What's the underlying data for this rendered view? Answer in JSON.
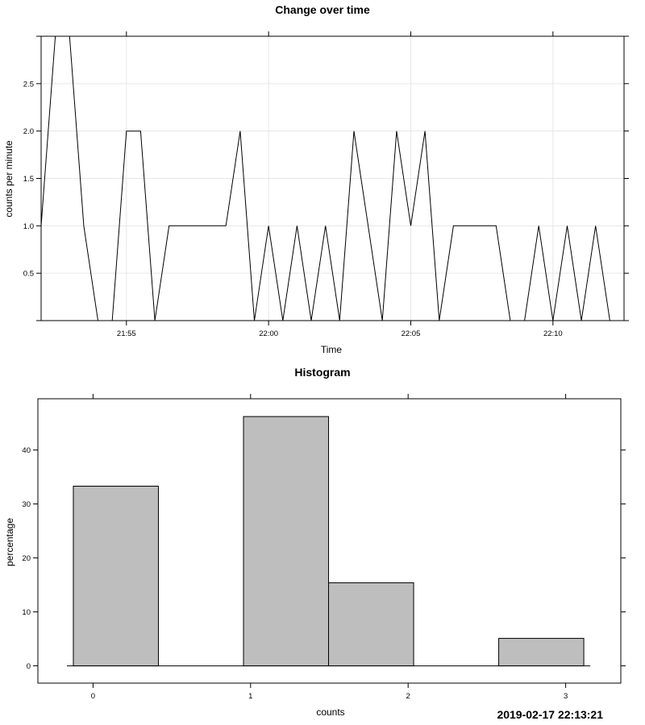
{
  "chart_data": [
    {
      "type": "line",
      "title": "Change over time",
      "xlabel": "Time",
      "ylabel": "counts per minute",
      "x_tick_labels": [
        "21:55",
        "22:00",
        "22:05",
        "22:10"
      ],
      "y_tick_labels": [
        "0.5",
        "1.0",
        "1.5",
        "2.0",
        "2.5"
      ],
      "y_ticks": [
        0.5,
        1.0,
        1.5,
        2.0,
        2.5
      ],
      "xlim": [
        "21:52",
        "22:12:30"
      ],
      "ylim": [
        0,
        3
      ],
      "grid": true,
      "legend": "none",
      "series": [
        {
          "x": [
            "21:52",
            "21:52:30",
            "21:53",
            "21:53:30",
            "21:54",
            "21:54:30",
            "21:55",
            "21:55:30",
            "21:56",
            "21:56:30",
            "21:57",
            "21:57:30",
            "21:58",
            "21:58:30",
            "21:59",
            "21:59:30",
            "22:00",
            "22:00:30",
            "22:01",
            "22:01:30",
            "22:02",
            "22:02:30",
            "22:03",
            "22:03:30",
            "22:04",
            "22:04:30",
            "22:05",
            "22:05:30",
            "22:06",
            "22:06:30",
            "22:07",
            "22:07:30",
            "22:08",
            "22:08:30",
            "22:09",
            "22:09:30",
            "22:10",
            "22:10:30",
            "22:11",
            "22:11:30",
            "22:12",
            "22:12:30"
          ],
          "values": [
            1,
            3,
            3,
            1,
            0,
            0,
            2,
            2,
            0,
            1,
            1,
            1,
            1,
            1,
            2,
            0,
            1,
            0,
            1,
            0,
            1,
            0,
            2,
            1,
            0,
            2,
            1,
            2,
            0,
            1,
            1,
            1,
            1,
            0,
            0,
            1,
            0,
            1,
            0,
            1,
            0,
            0
          ]
        }
      ]
    },
    {
      "type": "bar",
      "title": "Histogram",
      "xlabel": "counts",
      "ylabel": "percentage",
      "x_tick_labels": [
        "0",
        "1",
        "2",
        "3"
      ],
      "y_tick_labels": [
        "0",
        "10",
        "20",
        "30",
        "40"
      ],
      "y_ticks": [
        0,
        10,
        20,
        30,
        40
      ],
      "xlim": [
        -0.35,
        3.35
      ],
      "ylim": [
        -3.2,
        49.5
      ],
      "bins": [
        {
          "from": -0.125,
          "to": 0.415,
          "value": 33.3
        },
        {
          "from": 0.415,
          "to": 0.955,
          "value": 0
        },
        {
          "from": 0.955,
          "to": 1.495,
          "value": 46.2
        },
        {
          "from": 1.495,
          "to": 2.035,
          "value": 15.4
        },
        {
          "from": 2.035,
          "to": 2.575,
          "value": 0
        },
        {
          "from": 2.575,
          "to": 3.115,
          "value": 5.1
        }
      ],
      "bar_color": "#bebebe"
    }
  ],
  "timestamp": "2019-02-17 22:13:21"
}
